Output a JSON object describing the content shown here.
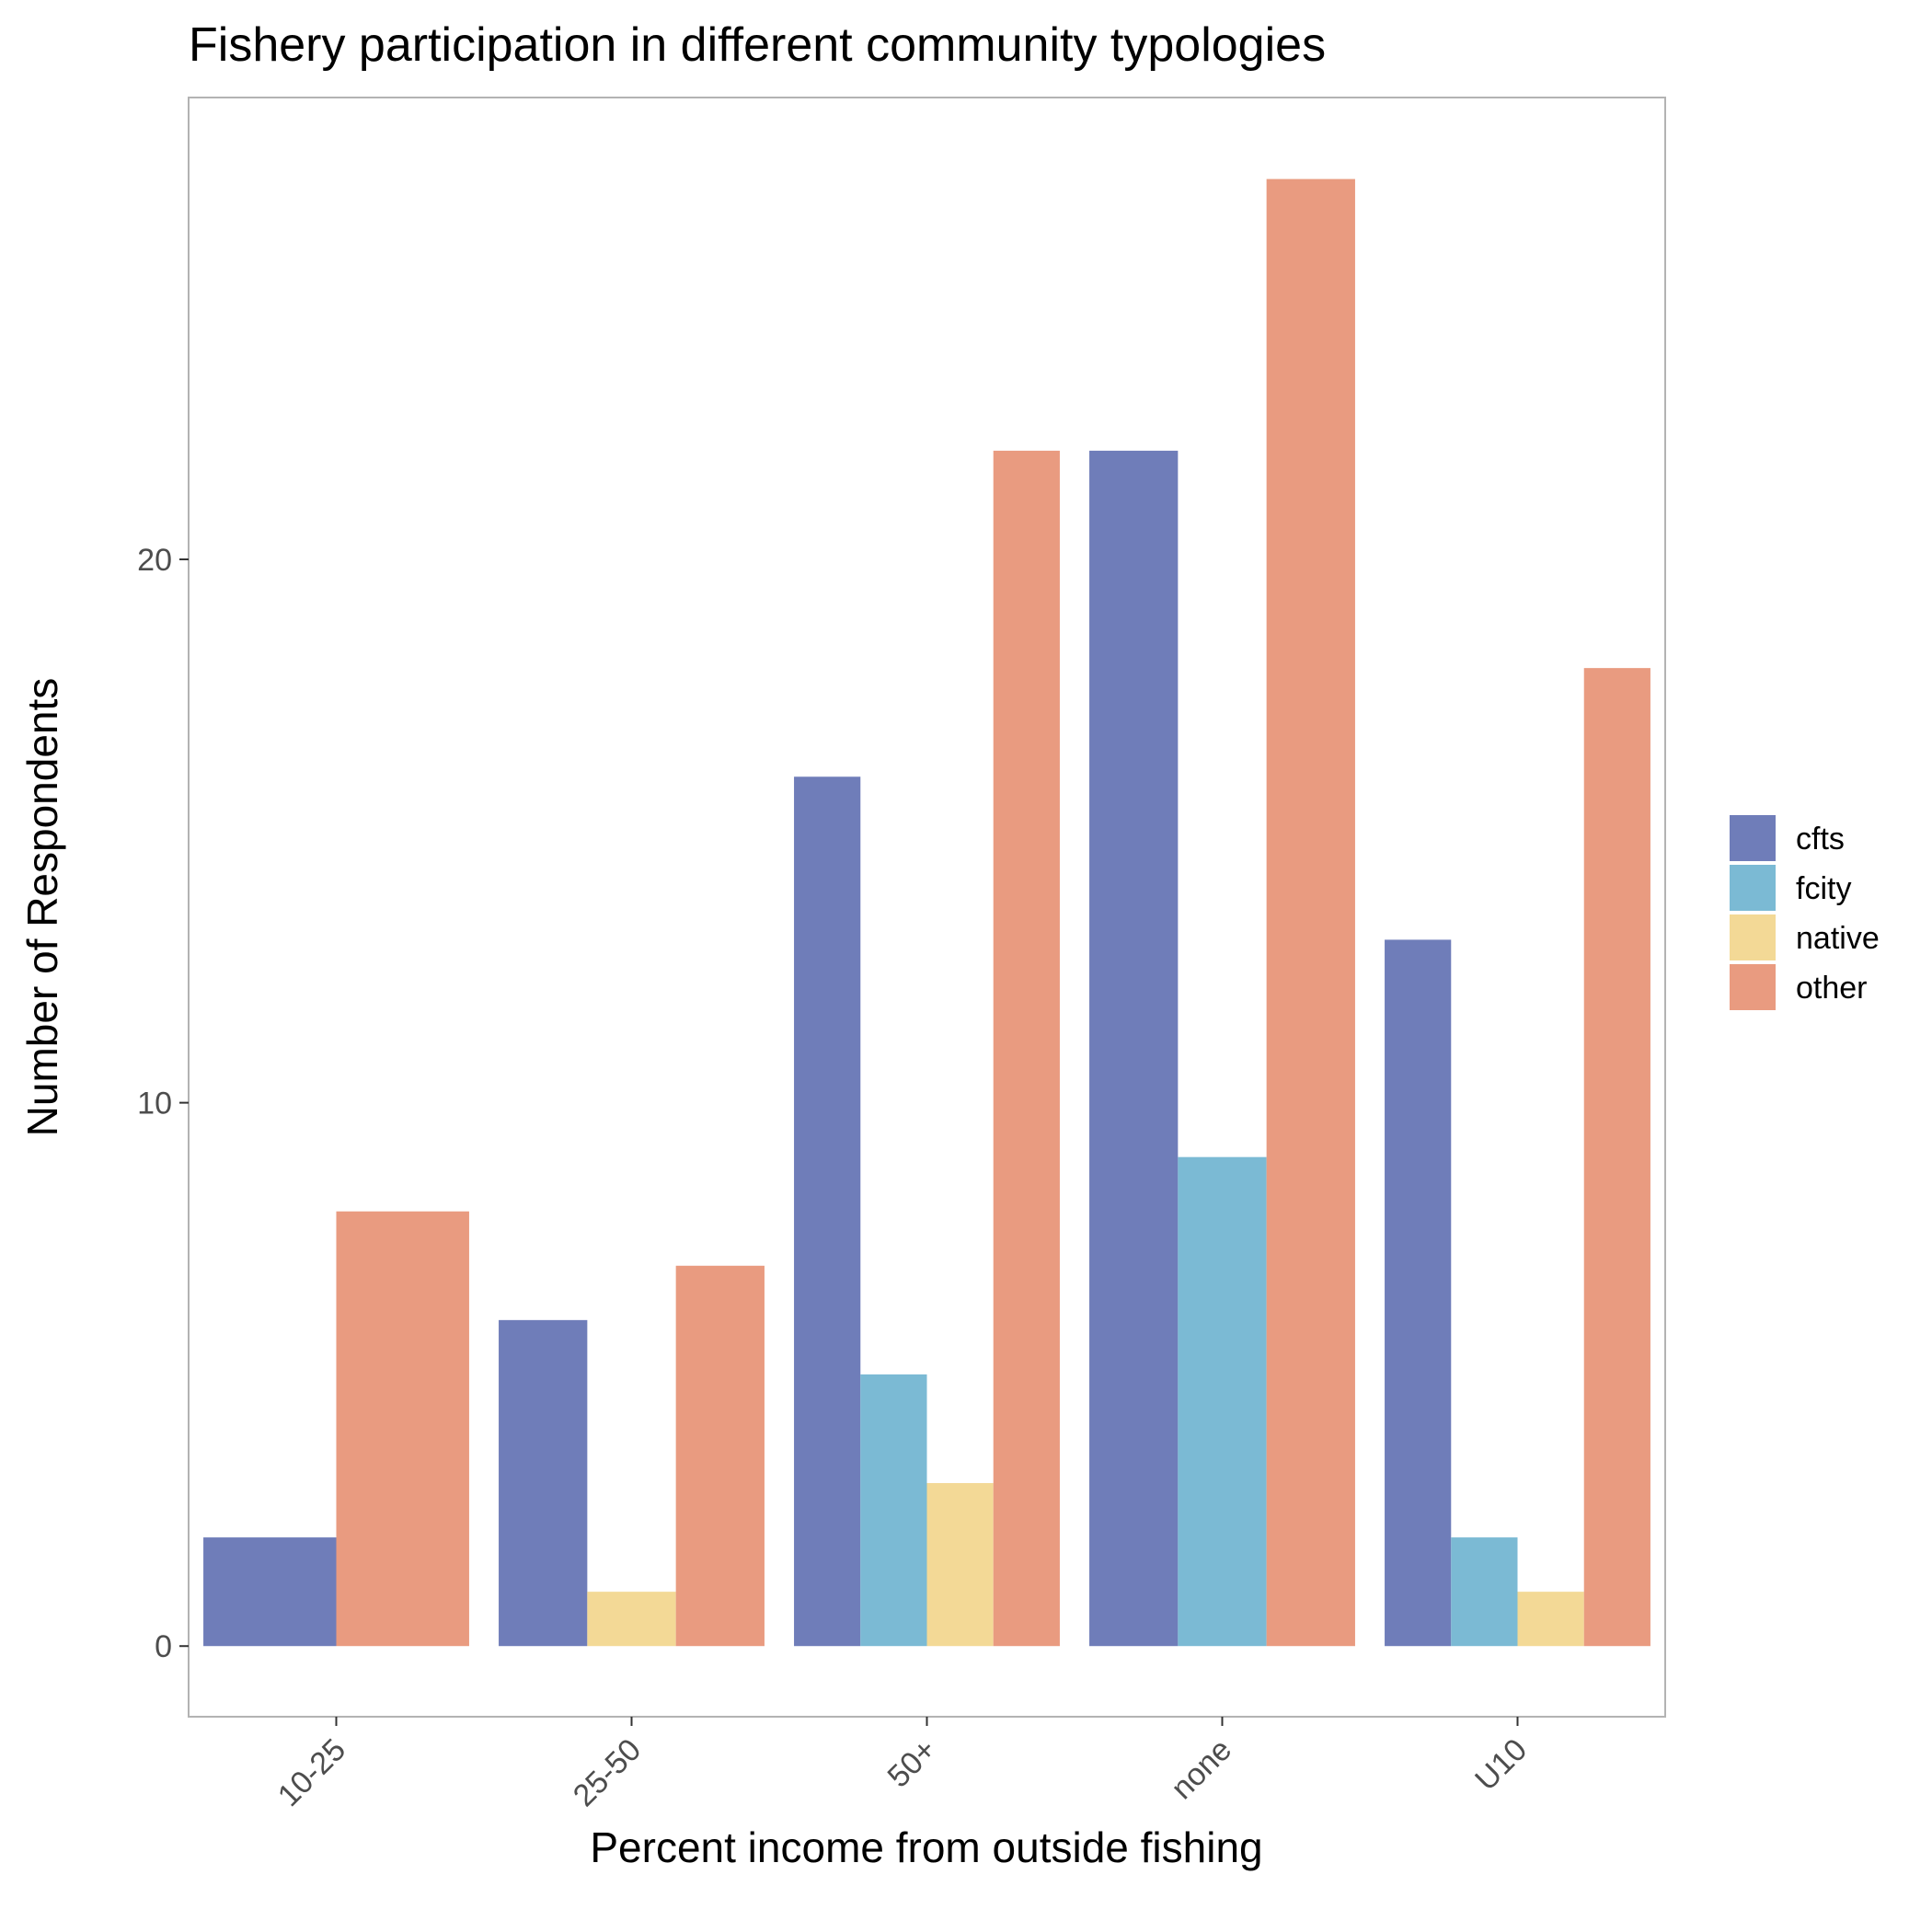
{
  "chart_data": {
    "type": "bar",
    "title": "Fishery participation in different community typologies",
    "xlabel": "Percent income from outside fishing",
    "ylabel": "Number of Respondents",
    "categories": [
      "10-25",
      "25-50",
      "50+",
      "none",
      "U10"
    ],
    "series": [
      {
        "name": "cfts",
        "color": "#6f7db9",
        "values": [
          2,
          6,
          16,
          22,
          13
        ]
      },
      {
        "name": "fcity",
        "color": "#7bbad4",
        "values": [
          null,
          null,
          5,
          9,
          2
        ]
      },
      {
        "name": "native",
        "color": "#f3d996",
        "values": [
          null,
          1,
          3,
          null,
          1
        ]
      },
      {
        "name": "other",
        "color": "#e99b80",
        "values": [
          8,
          7,
          22,
          27,
          18
        ]
      }
    ],
    "yticks": [
      0,
      10,
      20
    ],
    "ylim": [
      -1.3,
      28.5
    ],
    "grid": false,
    "legend_position": "right"
  }
}
